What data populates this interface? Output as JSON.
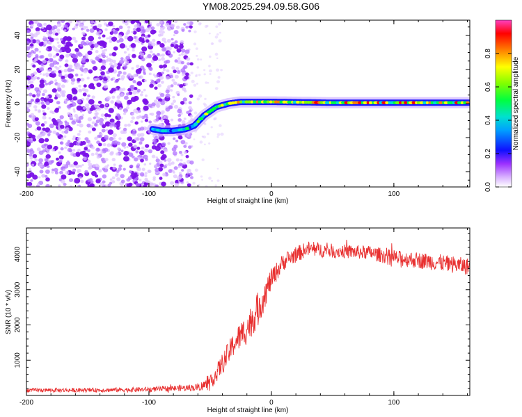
{
  "title": "YM08.2025.294.09.58.G06",
  "chart_data": [
    {
      "type": "heatmap",
      "xlabel": "Height of straight line (km)",
      "ylabel": "Frequency (Hz)",
      "xlim": [
        -200,
        162
      ],
      "ylim": [
        -49,
        49
      ],
      "xticks": [
        "-200",
        "-100",
        "0",
        "100"
      ],
      "yticks": [
        "-40",
        "-20",
        "0",
        "20",
        "40"
      ],
      "colorbar": {
        "label": "Normalized spectral amplitude",
        "ticks": [
          "0.0",
          "0.2",
          "0.4",
          "0.6",
          "0.8"
        ],
        "range": [
          0,
          1
        ]
      },
      "trace": {
        "description": "Doppler frequency track",
        "x": [
          -97,
          -90,
          -80,
          -70,
          -63,
          -55,
          -45,
          -35,
          -25,
          -15,
          0,
          50,
          100,
          162
        ],
        "freq": [
          -15,
          -16,
          -16,
          -15,
          -13,
          -7,
          -2,
          0,
          1,
          1,
          1,
          0.5,
          0.5,
          0.5
        ],
        "noise_region_end": -65
      },
      "colors": {
        "noise": "#8a2be2",
        "trace_low": "#0000ff",
        "trace_high": "#ff0000"
      }
    },
    {
      "type": "line",
      "xlabel": "Height of straight line (km)",
      "ylabel": "SNR (10 * v/v)",
      "xlim": [
        -200,
        162
      ],
      "ylim": [
        0,
        4750
      ],
      "xticks": [
        "-200",
        "-100",
        "0",
        "100"
      ],
      "yticks": [
        "1000",
        "2000",
        "3000",
        "4000"
      ],
      "series": [
        {
          "name": "SNR",
          "color": "#e83030",
          "x": [
            -200,
            -150,
            -100,
            -60,
            -50,
            -40,
            -30,
            -20,
            -10,
            0,
            10,
            20,
            30,
            50,
            80,
            100,
            130,
            162
          ],
          "y": [
            150,
            150,
            170,
            230,
            350,
            900,
            1500,
            1900,
            2500,
            3300,
            3800,
            4000,
            4150,
            4100,
            4050,
            3900,
            3800,
            3650
          ],
          "noise": [
            60,
            60,
            70,
            100,
            200,
            300,
            350,
            450,
            500,
            300,
            250,
            230,
            220,
            200,
            200,
            220,
            240,
            240
          ]
        }
      ]
    }
  ]
}
